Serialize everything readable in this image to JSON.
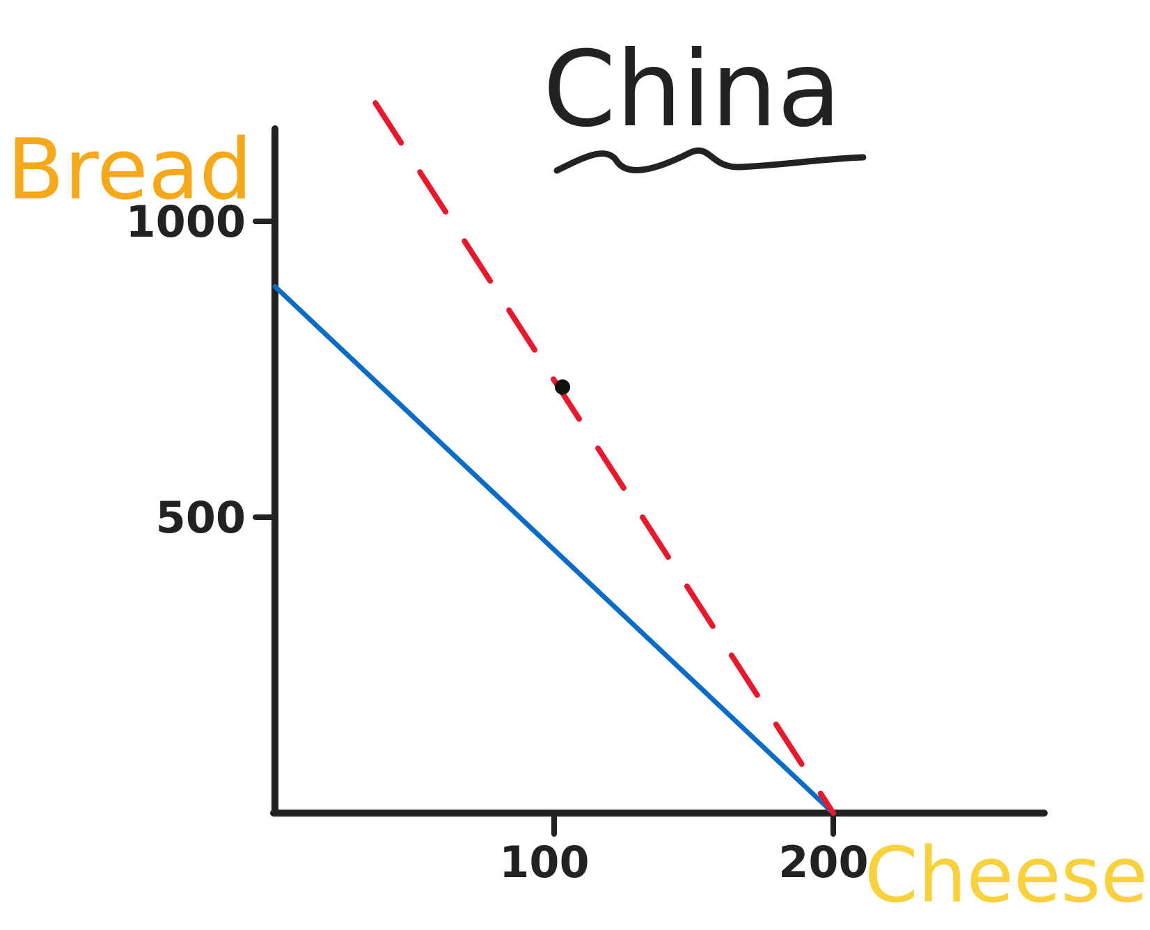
{
  "chart_data": {
    "type": "line",
    "title": "China",
    "xlabel": "Cheese",
    "ylabel": "Bread",
    "xlim": [
      0,
      275
    ],
    "ylim": [
      0,
      1050
    ],
    "x_ticks": [
      {
        "value": 100,
        "label": "100"
      },
      {
        "value": 200,
        "label": "200"
      }
    ],
    "y_ticks": [
      {
        "value": 500,
        "label": "500"
      },
      {
        "value": 1000,
        "label": "1000"
      }
    ],
    "series": [
      {
        "style": "solid",
        "color": "#0a6cc4",
        "points": [
          {
            "x": 0,
            "y": 890
          },
          {
            "x": 200,
            "y": 0
          }
        ]
      },
      {
        "style": "dashed",
        "color": "#e8192c",
        "points": [
          {
            "x": 36,
            "y": 1200
          },
          {
            "x": 200,
            "y": 0
          }
        ]
      }
    ],
    "points": [
      {
        "x": 103,
        "y": 720,
        "color": "#111111"
      }
    ],
    "colors": {
      "axes": "#222222",
      "title": "#222222",
      "ylabel": "#f5a91a",
      "xlabel": "#f8d23c"
    },
    "grid": false,
    "legend": "none"
  }
}
